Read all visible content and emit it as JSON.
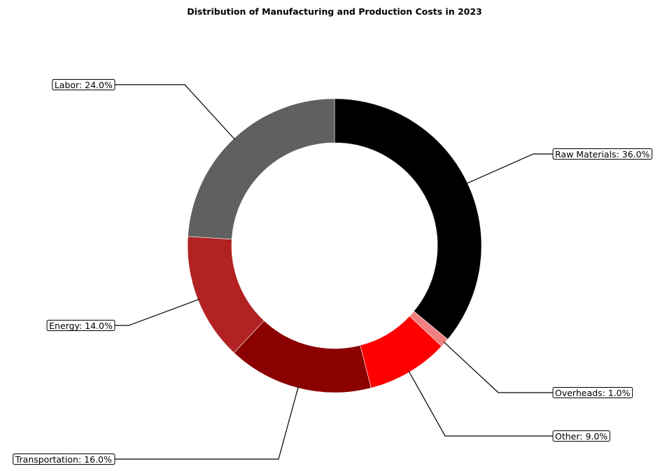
{
  "chart_data": {
    "type": "pie",
    "style": "donut",
    "title": "Distribution of Manufacturing and Production Costs in 2023",
    "start_angle_deg": 90,
    "direction": "clockwise",
    "slices": [
      {
        "label": "Raw Materials",
        "value": 36.0,
        "display": "Raw Materials: 36.0%",
        "color": "#000000"
      },
      {
        "label": "Overheads",
        "value": 1.0,
        "display": "Overheads: 1.0%",
        "color": "#f08080"
      },
      {
        "label": "Other",
        "value": 9.0,
        "display": "Other: 9.0%",
        "color": "#ff0000"
      },
      {
        "label": "Transportation",
        "value": 16.0,
        "display": "Transportation: 16.0%",
        "color": "#8b0000"
      },
      {
        "label": "Energy",
        "value": 14.0,
        "display": "Energy: 14.0%",
        "color": "#b22222"
      },
      {
        "label": "Labor",
        "value": 24.0,
        "display": "Labor: 24.0%",
        "color": "#606060"
      }
    ]
  }
}
